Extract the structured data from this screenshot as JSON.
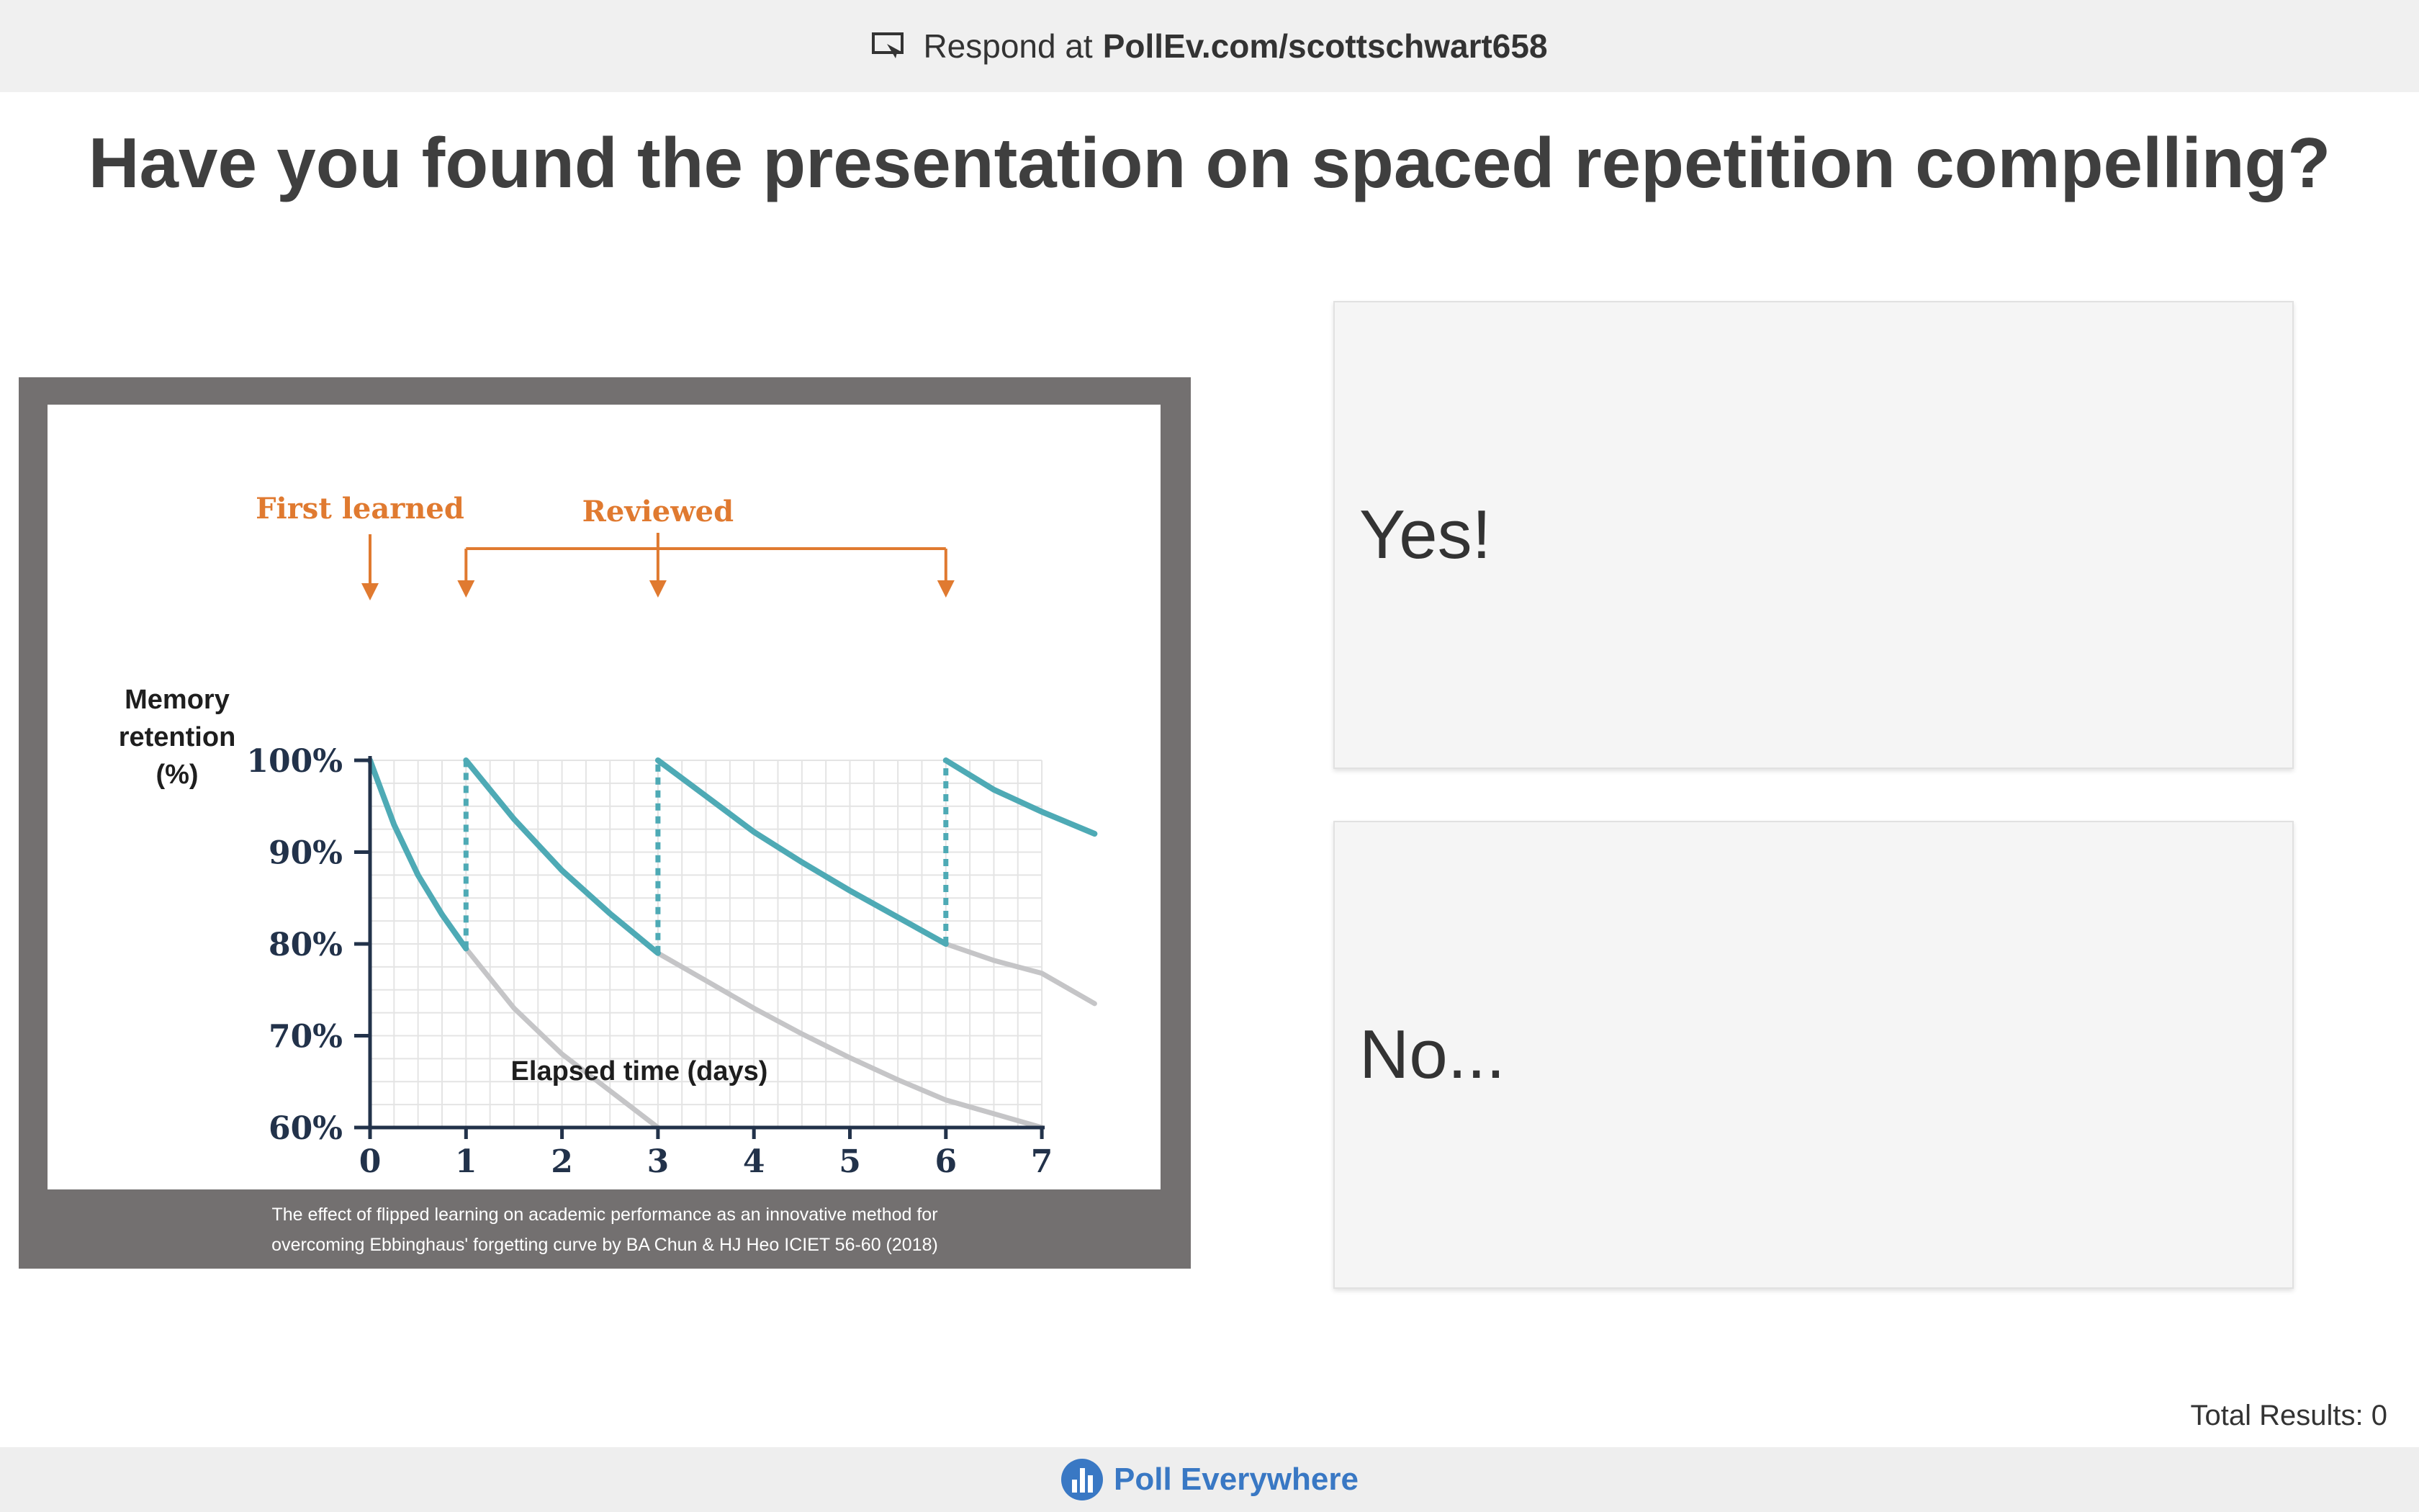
{
  "header": {
    "respond_prefix": "Respond at",
    "url": "PollEv.com/scottschwart658",
    "icon": "respond-icon"
  },
  "question": "Have you found the presentation on spaced repetition compelling?",
  "figure": {
    "caption_line1": "The effect of flipped learning on academic performance as an innovative method for",
    "caption_line2": "overcoming Ebbinghaus' forgetting curve by BA Chun & HJ Heo ICIET 56-60 (2018)"
  },
  "chart_data": {
    "type": "line",
    "ylabel_lines": [
      "Memory",
      "retention",
      "(%)"
    ],
    "xlabel": "Elapsed time (days)",
    "x_ticks": [
      0,
      1,
      2,
      3,
      4,
      5,
      6,
      7
    ],
    "y_ticks": [
      "60%",
      "70%",
      "80%",
      "90%",
      "100%"
    ],
    "xlim": [
      0,
      7
    ],
    "ylim": [
      60,
      100
    ],
    "grid": true,
    "annotations": {
      "first_learned": "First learned",
      "first_learned_day": 0,
      "reviewed": "Reviewed",
      "reviewed_days": [
        1,
        3,
        6
      ]
    },
    "colors": {
      "reviewed_curve": "#4eaab5",
      "decay_curve": "#c5c5c7",
      "annotation": "#e07a30",
      "axis": "#22324a"
    },
    "series": [
      {
        "role": "reviewed_curve",
        "points": [
          [
            0,
            100
          ],
          [
            0.25,
            93
          ],
          [
            0.5,
            87.5
          ],
          [
            0.75,
            83.2
          ],
          [
            1,
            79.5
          ]
        ]
      },
      {
        "role": "reviewed_curve",
        "points": [
          [
            1,
            100
          ],
          [
            1.5,
            93.6
          ],
          [
            2,
            88
          ],
          [
            2.5,
            83.3
          ],
          [
            3,
            79
          ]
        ]
      },
      {
        "role": "reviewed_curve",
        "points": [
          [
            3,
            100
          ],
          [
            3.5,
            96.1
          ],
          [
            4,
            92.2
          ],
          [
            4.5,
            88.9
          ],
          [
            5,
            85.8
          ],
          [
            5.5,
            82.9
          ],
          [
            6,
            80
          ]
        ]
      },
      {
        "role": "reviewed_curve",
        "points": [
          [
            6,
            100
          ],
          [
            6.25,
            98.4
          ],
          [
            6.5,
            96.8
          ],
          [
            6.75,
            95.6
          ],
          [
            7,
            94.4
          ],
          [
            7.55,
            92
          ]
        ]
      },
      {
        "role": "decay_curve",
        "points": [
          [
            1,
            79.5
          ],
          [
            1.5,
            73
          ],
          [
            2,
            68
          ],
          [
            2.5,
            64
          ],
          [
            3,
            60
          ]
        ]
      },
      {
        "role": "decay_curve",
        "points": [
          [
            3,
            79
          ],
          [
            3.5,
            76
          ],
          [
            4,
            73
          ],
          [
            4.5,
            70.2
          ],
          [
            5,
            67.6
          ],
          [
            5.5,
            65.2
          ],
          [
            6,
            63
          ],
          [
            6.5,
            61.5
          ],
          [
            7,
            60
          ]
        ]
      },
      {
        "role": "decay_curve",
        "points": [
          [
            6,
            80
          ],
          [
            6.5,
            78.2
          ],
          [
            7,
            76.8
          ],
          [
            7.55,
            73.5
          ]
        ]
      }
    ],
    "dashed_drops": [
      {
        "x": 1,
        "from": 79.5,
        "to": 100
      },
      {
        "x": 3,
        "from": 79,
        "to": 100
      },
      {
        "x": 6,
        "from": 80,
        "to": 100
      }
    ]
  },
  "options": [
    {
      "label": "Yes!"
    },
    {
      "label": "No..."
    }
  ],
  "total_results": "Total Results: 0",
  "footer": {
    "brand": "Poll Everywhere",
    "brand_color": "#3978c4"
  }
}
